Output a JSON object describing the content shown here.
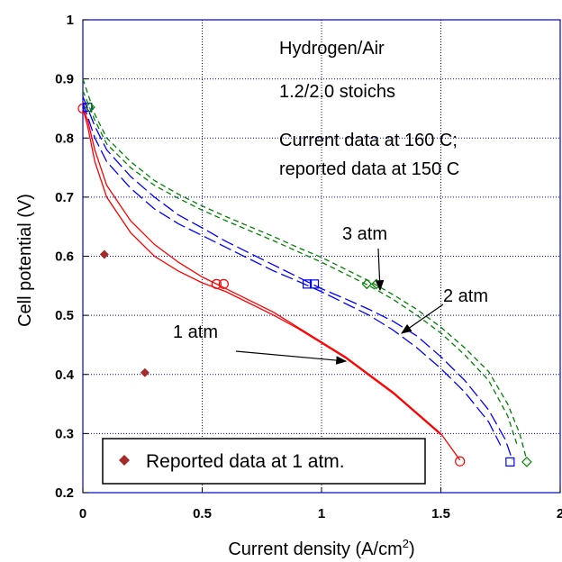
{
  "chart_data": {
    "type": "line",
    "xlabel": "Current density (A/cm",
    "xlabel_sup": "2",
    "xlabel_end": ")",
    "ylabel": "Cell potential (V)",
    "xlim": [
      0,
      2
    ],
    "ylim": [
      0.2,
      1
    ],
    "xticks": [
      "0",
      "0.5",
      "1",
      "1.5",
      "2"
    ],
    "yticks": [
      "0.2",
      "0.3",
      "0.4",
      "0.5",
      "0.6",
      "0.7",
      "0.8",
      "0.9",
      "1"
    ],
    "grid": true,
    "annotations": {
      "line1": "Hydrogen/Air",
      "line2": "1.2/2.0 stoichs",
      "line3": "Current data at 160 C;",
      "line4": "reported data at 150 C",
      "atm3": "3 atm",
      "atm2": "2 atm",
      "atm1": "1 atm"
    },
    "legend": {
      "label": "Reported data at 1 atm.",
      "position": "bottom-left",
      "marker_color": "#a52a2a"
    },
    "series": [
      {
        "color": "#ff0000",
        "dash": "solid",
        "curves": [
          [
            [
              0.0,
              0.85
            ],
            [
              0.02,
              0.83
            ],
            [
              0.05,
              0.78
            ],
            [
              0.1,
              0.72
            ],
            [
              0.2,
              0.66
            ],
            [
              0.3,
              0.62
            ],
            [
              0.4,
              0.59
            ],
            [
              0.5,
              0.565
            ],
            [
              0.6,
              0.545
            ],
            [
              0.7,
              0.525
            ],
            [
              0.8,
              0.505
            ],
            [
              0.9,
              0.48
            ],
            [
              1.0,
              0.455
            ],
            [
              1.1,
              0.43
            ],
            [
              1.2,
              0.4
            ],
            [
              1.3,
              0.37
            ],
            [
              1.4,
              0.335
            ],
            [
              1.5,
              0.3
            ],
            [
              1.58,
              0.255
            ]
          ],
          [
            [
              0.0,
              0.85
            ],
            [
              0.02,
              0.82
            ],
            [
              0.05,
              0.76
            ],
            [
              0.1,
              0.7
            ],
            [
              0.2,
              0.64
            ],
            [
              0.3,
              0.6
            ],
            [
              0.4,
              0.575
            ],
            [
              0.5,
              0.555
            ],
            [
              0.6,
              0.54
            ],
            [
              0.7,
              0.52
            ],
            [
              0.8,
              0.5
            ],
            [
              0.9,
              0.478
            ],
            [
              1.0,
              0.453
            ],
            [
              1.1,
              0.428
            ],
            [
              1.2,
              0.398
            ],
            [
              1.3,
              0.368
            ],
            [
              1.4,
              0.333
            ],
            [
              1.5,
              0.298
            ]
          ]
        ],
        "markers": {
          "shape": "circle",
          "points": [
            [
              0.0,
              0.85
            ],
            [
              0.56,
              0.553
            ],
            [
              0.59,
              0.553
            ],
            [
              1.58,
              0.253
            ]
          ]
        }
      },
      {
        "color": "#0000ff",
        "dash": "long",
        "curves": [
          [
            [
              0.0,
              0.87
            ],
            [
              0.05,
              0.82
            ],
            [
              0.1,
              0.78
            ],
            [
              0.2,
              0.735
            ],
            [
              0.3,
              0.7
            ],
            [
              0.4,
              0.67
            ],
            [
              0.5,
              0.648
            ],
            [
              0.6,
              0.625
            ],
            [
              0.7,
              0.605
            ],
            [
              0.8,
              0.585
            ],
            [
              0.9,
              0.565
            ],
            [
              1.0,
              0.545
            ],
            [
              1.1,
              0.528
            ],
            [
              1.2,
              0.51
            ],
            [
              1.3,
              0.49
            ],
            [
              1.4,
              0.465
            ],
            [
              1.5,
              0.43
            ],
            [
              1.6,
              0.39
            ],
            [
              1.7,
              0.34
            ],
            [
              1.77,
              0.29
            ],
            [
              1.8,
              0.255
            ]
          ],
          [
            [
              0.0,
              0.86
            ],
            [
              0.05,
              0.8
            ],
            [
              0.1,
              0.76
            ],
            [
              0.2,
              0.715
            ],
            [
              0.3,
              0.68
            ],
            [
              0.4,
              0.655
            ],
            [
              0.5,
              0.635
            ],
            [
              0.6,
              0.615
            ],
            [
              0.7,
              0.595
            ],
            [
              0.8,
              0.575
            ],
            [
              0.9,
              0.558
            ],
            [
              1.0,
              0.54
            ],
            [
              1.1,
              0.52
            ],
            [
              1.2,
              0.5
            ],
            [
              1.3,
              0.475
            ],
            [
              1.4,
              0.445
            ],
            [
              1.5,
              0.41
            ],
            [
              1.6,
              0.37
            ],
            [
              1.7,
              0.32
            ],
            [
              1.75,
              0.28
            ]
          ]
        ],
        "markers": {
          "shape": "square",
          "points": [
            [
              0.02,
              0.852
            ],
            [
              0.94,
              0.553
            ],
            [
              0.97,
              0.553
            ],
            [
              1.79,
              0.252
            ]
          ]
        }
      },
      {
        "color": "#008000",
        "dash": "short",
        "curves": [
          [
            [
              0.0,
              0.9
            ],
            [
              0.05,
              0.84
            ],
            [
              0.1,
              0.8
            ],
            [
              0.2,
              0.76
            ],
            [
              0.3,
              0.728
            ],
            [
              0.4,
              0.705
            ],
            [
              0.5,
              0.685
            ],
            [
              0.6,
              0.667
            ],
            [
              0.7,
              0.65
            ],
            [
              0.8,
              0.633
            ],
            [
              0.9,
              0.615
            ],
            [
              1.0,
              0.598
            ],
            [
              1.1,
              0.578
            ],
            [
              1.2,
              0.558
            ],
            [
              1.3,
              0.535
            ],
            [
              1.4,
              0.51
            ],
            [
              1.5,
              0.48
            ],
            [
              1.6,
              0.445
            ],
            [
              1.7,
              0.405
            ],
            [
              1.78,
              0.35
            ],
            [
              1.83,
              0.3
            ],
            [
              1.86,
              0.255
            ]
          ],
          [
            [
              0.0,
              0.88
            ],
            [
              0.05,
              0.83
            ],
            [
              0.1,
              0.79
            ],
            [
              0.2,
              0.75
            ],
            [
              0.3,
              0.72
            ],
            [
              0.4,
              0.698
            ],
            [
              0.5,
              0.678
            ],
            [
              0.6,
              0.66
            ],
            [
              0.7,
              0.643
            ],
            [
              0.8,
              0.626
            ],
            [
              0.9,
              0.608
            ],
            [
              1.0,
              0.59
            ],
            [
              1.1,
              0.57
            ],
            [
              1.2,
              0.55
            ],
            [
              1.3,
              0.527
            ],
            [
              1.4,
              0.5
            ],
            [
              1.5,
              0.47
            ],
            [
              1.6,
              0.433
            ],
            [
              1.7,
              0.39
            ],
            [
              1.78,
              0.33
            ],
            [
              1.82,
              0.28
            ]
          ]
        ],
        "markers": {
          "shape": "diamond",
          "points": [
            [
              0.03,
              0.852
            ],
            [
              1.19,
              0.553
            ],
            [
              1.23,
              0.553
            ],
            [
              1.86,
              0.252
            ]
          ]
        }
      },
      {
        "name": "Reported data at 1 atm.",
        "color": "#a52a2a",
        "points": [
          [
            0.09,
            0.603
          ],
          [
            0.26,
            0.403
          ]
        ]
      }
    ]
  }
}
